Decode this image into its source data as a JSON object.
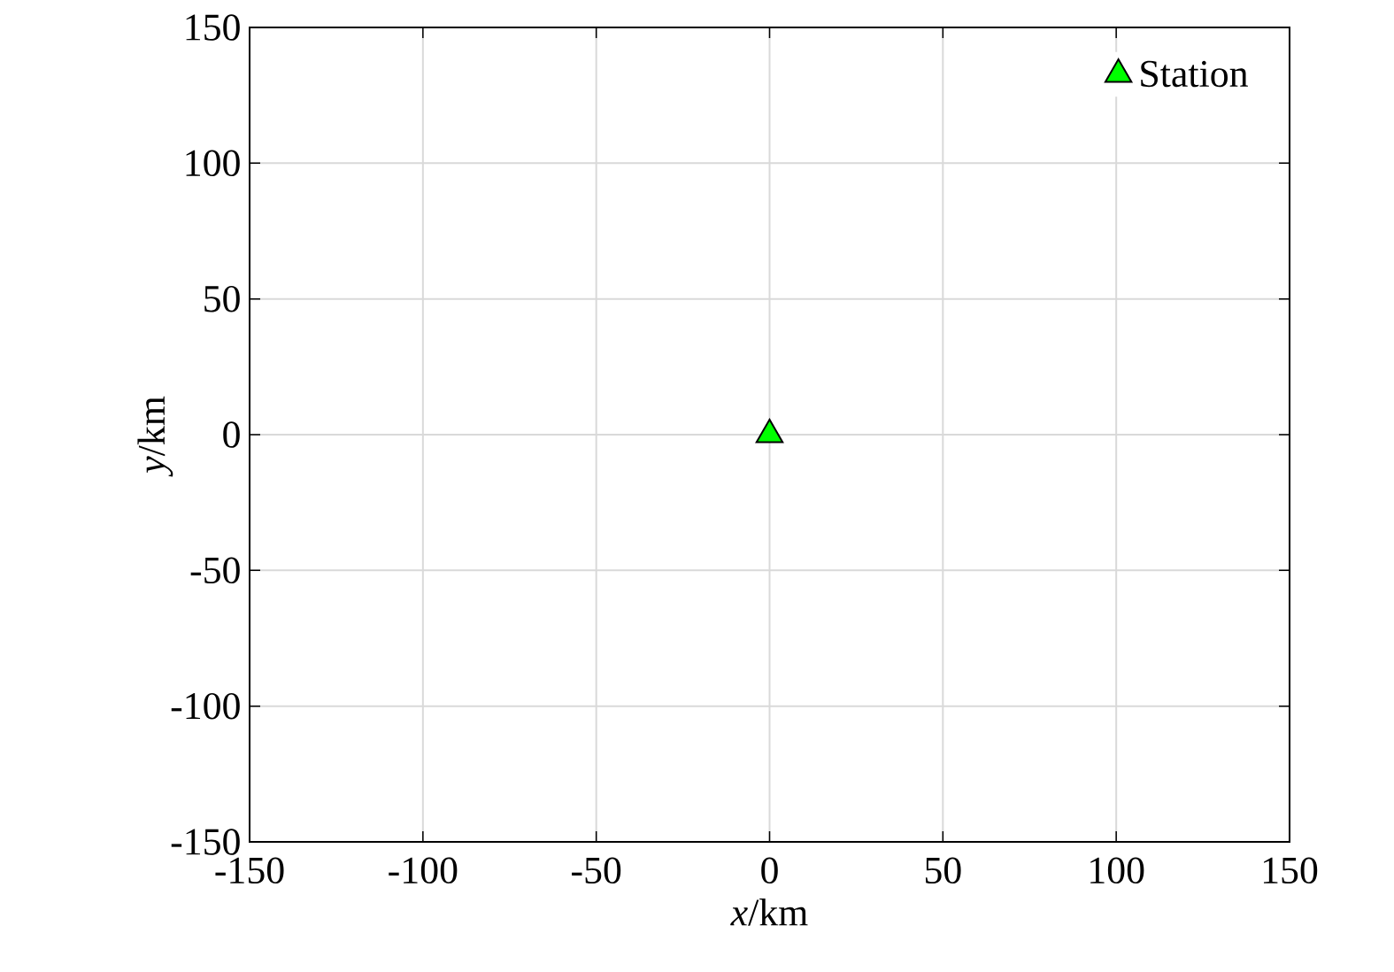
{
  "chart_data": {
    "type": "scatter",
    "x": [
      0
    ],
    "series": [
      {
        "name": "Station",
        "color": "#00ff00",
        "values": [
          0
        ]
      }
    ],
    "xlabel": "*x*/km",
    "ylabel": "*y*/km",
    "xlim": [
      -150,
      150
    ],
    "ylim": [
      -150,
      150
    ],
    "xticks": [
      -150,
      -100,
      -50,
      0,
      50,
      100,
      150
    ],
    "yticks": [
      -150,
      -100,
      -50,
      0,
      50,
      100,
      150
    ],
    "grid": true,
    "legend": "top right",
    "marker": "triangle"
  }
}
